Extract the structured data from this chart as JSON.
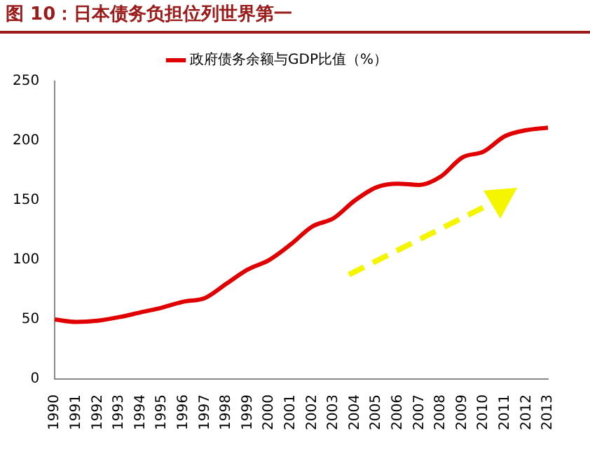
{
  "chart_data": {
    "type": "line",
    "title": "图 10：日本债务负担位列世界第一",
    "categories": [
      "1990",
      "1991",
      "1992",
      "1993",
      "1994",
      "1995",
      "1996",
      "1997",
      "1998",
      "1999",
      "2000",
      "2001",
      "2002",
      "2003",
      "2004",
      "2005",
      "2006",
      "2007",
      "2008",
      "2009",
      "2010",
      "2011",
      "2012",
      "2013"
    ],
    "series": [
      {
        "name": "政府债务余额与GDP比值（%）",
        "color": "#e00000",
        "values": [
          50,
          48,
          49,
          52,
          56,
          60,
          65,
          68,
          80,
          92,
          100,
          113,
          128,
          135,
          150,
          161,
          164,
          163,
          170,
          186,
          191,
          204,
          209,
          211
        ]
      }
    ],
    "ylim": [
      0,
      250
    ],
    "yticks": [
      0,
      50,
      100,
      150,
      200,
      250
    ],
    "grid": false,
    "legend": "top",
    "marker": "none",
    "line_style": "solid"
  }
}
